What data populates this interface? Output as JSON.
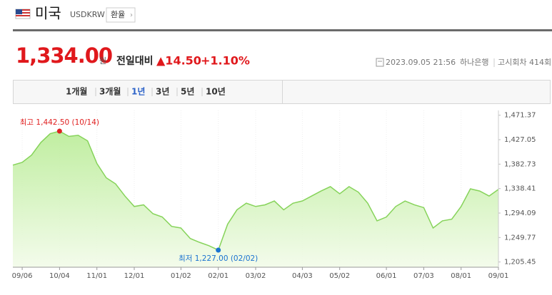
{
  "header": {
    "country": "미국",
    "code": "USDKRW",
    "button": "환율"
  },
  "price": {
    "value": "1,334.00",
    "unit": "원",
    "change_label": "전일대비",
    "change": "▲14.50",
    "change_pct": "+1.10%"
  },
  "info": {
    "datetime": "2023.09.05 21:56",
    "bank": "하나은행",
    "round": "고시회차 414회"
  },
  "tabs": {
    "items": [
      "1개월",
      "3개월",
      "1년",
      "3년",
      "5년",
      "10년"
    ],
    "selected": 2
  },
  "chart_data": {
    "type": "area",
    "color": "#86d35a",
    "categories": [
      null,
      "09/06",
      null,
      null,
      null,
      "10/04",
      null,
      null,
      null,
      "11/01",
      null,
      null,
      null,
      "12/01",
      null,
      null,
      null,
      null,
      "01/02",
      null,
      null,
      null,
      "02/01",
      null,
      null,
      null,
      "03/02",
      null,
      null,
      null,
      null,
      "04/03",
      null,
      null,
      null,
      "05/02",
      null,
      null,
      null,
      null,
      "06/01",
      null,
      null,
      null,
      "07/03",
      null,
      null,
      null,
      "08/01",
      null,
      null,
      null,
      "09/01"
    ],
    "values": [
      1381,
      1386,
      1399,
      1422,
      1438,
      1442.5,
      1433,
      1435,
      1425,
      1384,
      1358,
      1347,
      1325,
      1306,
      1309,
      1293,
      1287,
      1270,
      1267,
      1248,
      1241,
      1235,
      1227,
      1274,
      1300,
      1312,
      1306,
      1309,
      1316,
      1300,
      1312,
      1316,
      1325,
      1334,
      1342,
      1329,
      1342,
      1332,
      1312,
      1280,
      1287,
      1306,
      1316,
      1309,
      1304,
      1267,
      1280,
      1283,
      1306,
      1338,
      1334,
      1325,
      1337
    ],
    "ylim": [
      1196,
      1480
    ],
    "yticks": [
      {
        "value": 1205.45,
        "label": "1,205.45"
      },
      {
        "value": 1249.77,
        "label": "1,249.77"
      },
      {
        "value": 1294.09,
        "label": "1,294.09"
      },
      {
        "value": 1338.41,
        "label": "1,338.41"
      },
      {
        "value": 1382.73,
        "label": "1,382.73"
      },
      {
        "value": 1427.05,
        "label": "1,427.05"
      },
      {
        "value": 1471.37,
        "label": "1,471.37"
      }
    ],
    "grid": true,
    "annotations": [
      {
        "label": "최고 1,442.50 (10/14)",
        "value": 1442.5,
        "color": "#e02020"
      },
      {
        "label": "최저 1,227.00 (02/02)",
        "value": 1227,
        "color": "#1a73d0"
      }
    ]
  }
}
